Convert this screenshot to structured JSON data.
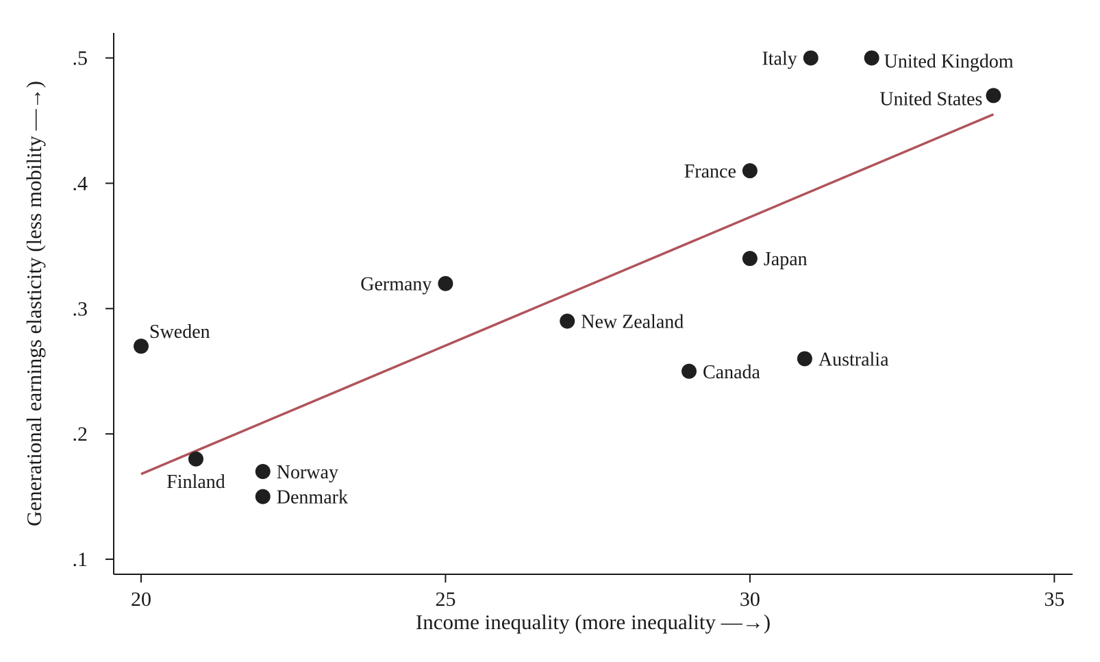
{
  "chart_data": {
    "type": "scatter",
    "xlabel": "Income inequality (more inequality —→)",
    "ylabel": "Generational earnings elasticity (less mobility —→)",
    "xlim": [
      19.55,
      35.3
    ],
    "ylim": [
      0.088,
      0.52
    ],
    "xticks": [
      20,
      25,
      30,
      35
    ],
    "xtick_labels": [
      "20",
      "25",
      "30",
      "35"
    ],
    "yticks": [
      0.1,
      0.2,
      0.3,
      0.4,
      0.5
    ],
    "ytick_labels": [
      ".1",
      ".2",
      ".3",
      ".4",
      ".5"
    ],
    "points": [
      {
        "label": "Italy",
        "x": 31.0,
        "y": 0.5,
        "label_pos": "left"
      },
      {
        "label": "United Kingdom",
        "x": 32.0,
        "y": 0.5,
        "label_pos": "right-below"
      },
      {
        "label": "United States",
        "x": 34.0,
        "y": 0.47,
        "label_pos": "left-below"
      },
      {
        "label": "France",
        "x": 30.0,
        "y": 0.41,
        "label_pos": "left"
      },
      {
        "label": "Japan",
        "x": 30.0,
        "y": 0.34,
        "label_pos": "right"
      },
      {
        "label": "Germany",
        "x": 25.0,
        "y": 0.32,
        "label_pos": "left"
      },
      {
        "label": "New Zealand",
        "x": 27.0,
        "y": 0.29,
        "label_pos": "right"
      },
      {
        "label": "Sweden",
        "x": 20.0,
        "y": 0.27,
        "label_pos": "right-above"
      },
      {
        "label": "Australia",
        "x": 30.9,
        "y": 0.26,
        "label_pos": "right"
      },
      {
        "label": "Canada",
        "x": 29.0,
        "y": 0.25,
        "label_pos": "right"
      },
      {
        "label": "Finland",
        "x": 20.9,
        "y": 0.18,
        "label_pos": "below"
      },
      {
        "label": "Norway",
        "x": 22.0,
        "y": 0.17,
        "label_pos": "right"
      },
      {
        "label": "Denmark",
        "x": 22.0,
        "y": 0.15,
        "label_pos": "right"
      }
    ],
    "fit_line": {
      "x": [
        20.0,
        34.0
      ],
      "y": [
        0.168,
        0.455
      ]
    },
    "grid": false,
    "colors": {
      "points": "#1f1f1f",
      "fit_line": "#b0535a",
      "axis": "#1a1a1a"
    }
  }
}
